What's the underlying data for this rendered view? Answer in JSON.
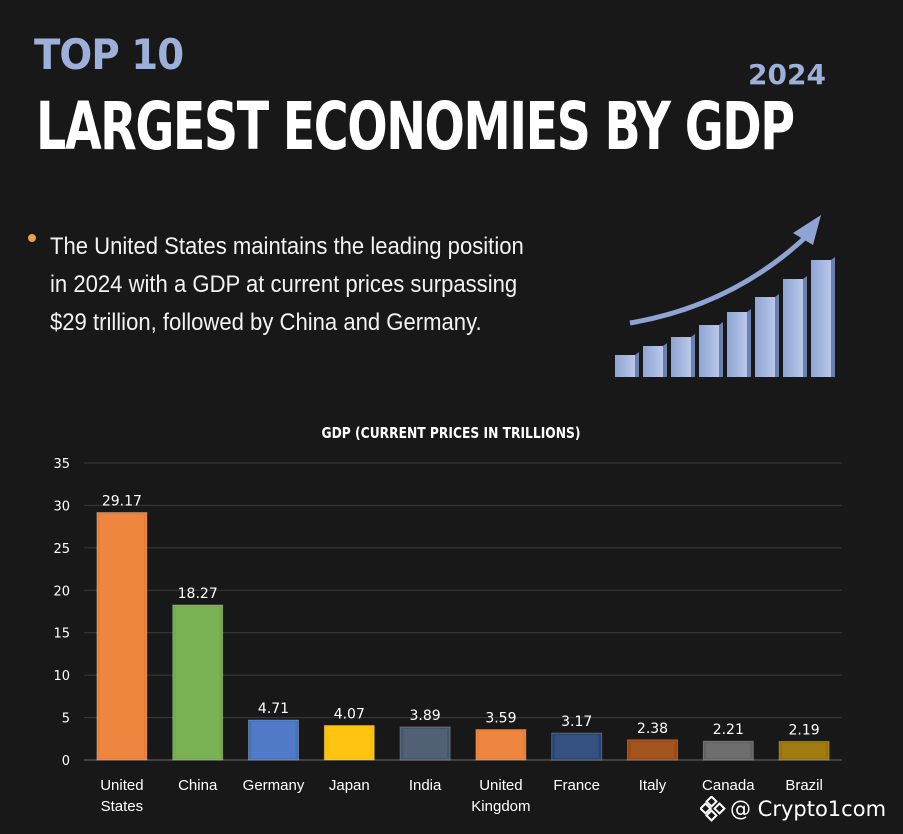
{
  "header": {
    "kicker": "TOP 10",
    "year": "2024",
    "title": "LARGEST ECONOMIES BY GDP"
  },
  "description": "The United States maintains the leading position in 2024 with a GDP at current prices surpassing $29 trillion, followed by China and Germany.",
  "watermark": {
    "handle": "@ Crypto1com"
  },
  "colors": {
    "background": "#191818",
    "accent": "#9db0da",
    "bullet": "#e8a04a"
  },
  "chart_data": {
    "type": "bar",
    "title": "GDP (CURRENT PRICES IN TRILLIONS)",
    "xlabel": "",
    "ylabel": "",
    "ylim": [
      0,
      35
    ],
    "yticks": [
      0,
      5,
      10,
      15,
      20,
      25,
      30,
      35
    ],
    "grid": true,
    "categories": [
      {
        "line1": "United",
        "line2": "States"
      },
      {
        "line1": "China",
        "line2": ""
      },
      {
        "line1": "Germany",
        "line2": ""
      },
      {
        "line1": "Japan",
        "line2": ""
      },
      {
        "line1": "India",
        "line2": ""
      },
      {
        "line1": "United",
        "line2": "Kingdom"
      },
      {
        "line1": "France",
        "line2": ""
      },
      {
        "line1": "Italy",
        "line2": ""
      },
      {
        "line1": "Canada",
        "line2": ""
      },
      {
        "line1": "Brazil",
        "line2": ""
      }
    ],
    "values": [
      29.17,
      18.27,
      4.71,
      4.07,
      3.89,
      3.59,
      3.17,
      2.38,
      2.21,
      2.19
    ],
    "labels": [
      "29.17",
      "18.27",
      "4.71",
      "4.07",
      "3.89",
      "3.59",
      "3.17",
      "2.38",
      "2.21",
      "2.19"
    ],
    "bar_colors": [
      "#ee7d31",
      "#70ad47",
      "#4472c4",
      "#ffc000",
      "#44546a",
      "#ed7d31",
      "#264478",
      "#9e480e",
      "#636363",
      "#997300"
    ]
  }
}
